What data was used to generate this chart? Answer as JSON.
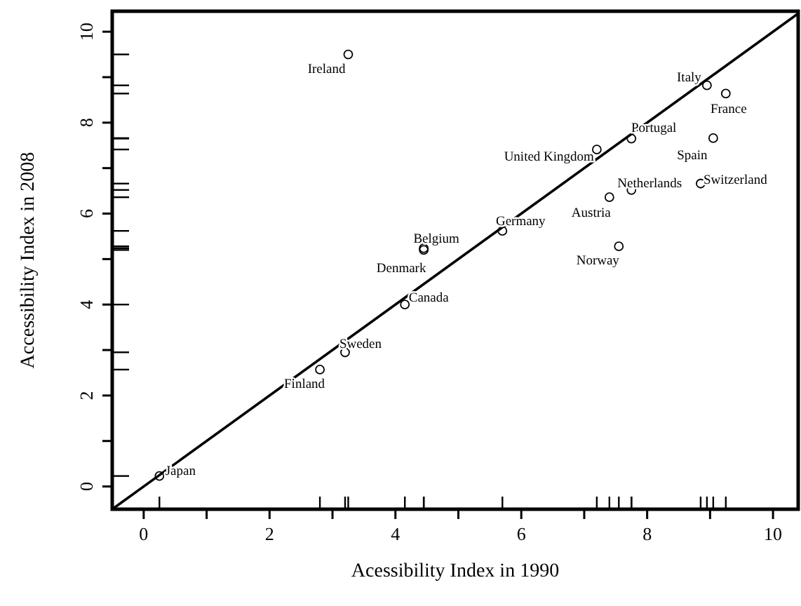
{
  "chart_data": {
    "type": "scatter",
    "xlabel": "Acessibility Index in 1990",
    "ylabel": "Accessibility Index in 2008",
    "xlim": [
      -0.5,
      10.4
    ],
    "ylim": [
      -0.5,
      10.45
    ],
    "xticks": [
      0,
      {
        "value": 1,
        "label": null
      },
      2,
      {
        "value": 3,
        "label": null
      },
      4,
      {
        "value": 5,
        "label": null
      },
      6,
      {
        "value": 7,
        "label": null
      },
      8,
      {
        "value": 9,
        "label": null
      },
      10
    ],
    "yticks": [
      0,
      {
        "value": 1,
        "label": null
      },
      2,
      {
        "value": 3,
        "label": null
      },
      4,
      {
        "value": 5,
        "label": null
      },
      6,
      {
        "value": 7,
        "label": null
      },
      8,
      {
        "value": 9,
        "label": null
      },
      10
    ],
    "grid": false,
    "series": [
      {
        "marker": "circle",
        "color": "#000000",
        "x": [
          3.25,
          8.95,
          9.25,
          7.75,
          7.2,
          9.05,
          7.75,
          8.85,
          7.4,
          5.7,
          7.55,
          4.45,
          4.45,
          4.15,
          3.2,
          2.8,
          0.25
        ],
        "values": [
          9.5,
          8.82,
          8.64,
          7.65,
          7.41,
          7.66,
          6.52,
          6.66,
          6.36,
          5.62,
          5.28,
          5.24,
          5.2,
          4.0,
          2.95,
          2.57,
          0.23
        ]
      },
      {
        "type": "line",
        "color": "#000000",
        "line_style": "solid",
        "x": [
          -0.5,
          10.4
        ],
        "values": [
          -0.5,
          10.4
        ]
      }
    ],
    "annotations": [
      {
        "text": "Ireland",
        "x": 3.25,
        "y": 9.5
      },
      {
        "text": "Italy",
        "x": 8.95,
        "y": 8.82
      },
      {
        "text": "France",
        "x": 9.25,
        "y": 8.64
      },
      {
        "text": "Portugal",
        "x": 7.75,
        "y": 7.65
      },
      {
        "text": "United Kingdom",
        "x": 7.2,
        "y": 7.41
      },
      {
        "text": "Spain",
        "x": 9.05,
        "y": 7.66
      },
      {
        "text": "Netherlands",
        "x": 7.75,
        "y": 6.52
      },
      {
        "text": "Switzerland",
        "x": 8.85,
        "y": 6.66
      },
      {
        "text": "Austria",
        "x": 7.4,
        "y": 6.36
      },
      {
        "text": "Germany",
        "x": 5.7,
        "y": 5.62
      },
      {
        "text": "Norway",
        "x": 7.55,
        "y": 5.28
      },
      {
        "text": "Belgium",
        "x": 4.45,
        "y": 5.24
      },
      {
        "text": "Denmark",
        "x": 4.45,
        "y": 5.2
      },
      {
        "text": "Canada",
        "x": 4.15,
        "y": 4.0
      },
      {
        "text": "Sweden",
        "x": 3.2,
        "y": 2.95
      },
      {
        "text": "Finland",
        "x": 2.8,
        "y": 2.57
      },
      {
        "text": "Japan",
        "x": 0.25,
        "y": 0.23
      }
    ]
  }
}
